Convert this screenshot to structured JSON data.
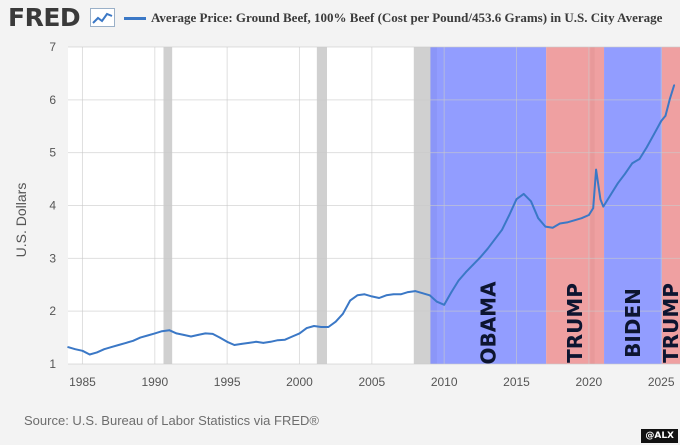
{
  "header": {
    "logo_text": "FRED",
    "legend_text": "Average Price: Ground Beef, 100% Beef (Cost per Pound/453.6 Grams) in U.S. City Average"
  },
  "footer": {
    "source": "Source: U.S. Bureau of Labor Statistics via FRED®",
    "watermark": "@ALX"
  },
  "colors": {
    "line": "#3b78c6",
    "democrat": "#7f8cff",
    "republican": "#ec8f90",
    "recession": "#d0d0d0"
  },
  "chart_data": {
    "type": "line",
    "title": "Average Price: Ground Beef, 100% Beef (Cost per Pound/453.6 Grams) in U.S. City Average",
    "ylabel": "U.S. Dollars",
    "xlabel": "",
    "xlim": [
      1984,
      2026.3
    ],
    "ylim": [
      1,
      7
    ],
    "x_ticks": [
      1985,
      1990,
      1995,
      2000,
      2005,
      2010,
      2015,
      2020,
      2025
    ],
    "y_ticks": [
      1,
      2,
      3,
      4,
      5,
      6,
      7
    ],
    "grid": true,
    "legend": "top",
    "recessions": [
      [
        1990.6,
        1991.2
      ],
      [
        2001.2,
        2001.9
      ],
      [
        2007.9,
        2009.5
      ],
      [
        2020.1,
        2020.4
      ]
    ],
    "eras": [
      {
        "label": "OBAMA",
        "start": 2009.05,
        "end": 2017.05,
        "party": "democrat"
      },
      {
        "label": "TRUMP",
        "start": 2017.05,
        "end": 2021.05,
        "party": "republican"
      },
      {
        "label": "BIDEN",
        "start": 2021.05,
        "end": 2025.05,
        "party": "democrat"
      },
      {
        "label": "TRUMP",
        "start": 2025.05,
        "end": 2026.3,
        "party": "republican"
      }
    ],
    "series": [
      {
        "x": [
          1984.0,
          1984.5,
          1985.0,
          1985.5,
          1986.0,
          1986.5,
          1987.0,
          1987.5,
          1988.0,
          1988.5,
          1989.0,
          1989.5,
          1990.0,
          1990.5,
          1991.0,
          1991.5,
          1992.0,
          1992.5,
          1993.0,
          1993.5,
          1994.0,
          1994.5,
          1995.0,
          1995.5,
          1996.0,
          1996.5,
          1997.0,
          1997.5,
          1998.0,
          1998.5,
          1999.0,
          1999.5,
          2000.0,
          2000.5,
          2001.0,
          2001.5,
          2002.0,
          2002.5,
          2003.0,
          2003.5,
          2004.0,
          2004.5,
          2005.0,
          2005.5,
          2006.0,
          2006.5,
          2007.0,
          2007.5,
          2008.0,
          2008.5,
          2009.0,
          2009.5,
          2010.0,
          2010.5,
          2011.0,
          2011.5,
          2012.0,
          2012.5,
          2013.0,
          2013.5,
          2014.0,
          2014.5,
          2015.0,
          2015.5,
          2016.0,
          2016.5,
          2017.0,
          2017.5,
          2018.0,
          2018.5,
          2019.0,
          2019.5,
          2020.0,
          2020.3,
          2020.5,
          2020.8,
          2021.0,
          2021.5,
          2022.0,
          2022.5,
          2023.0,
          2023.5,
          2024.0,
          2024.5,
          2025.0,
          2025.3,
          2025.6,
          2025.9
        ],
        "y": [
          1.32,
          1.28,
          1.25,
          1.18,
          1.22,
          1.28,
          1.32,
          1.36,
          1.4,
          1.44,
          1.5,
          1.54,
          1.58,
          1.62,
          1.64,
          1.58,
          1.55,
          1.52,
          1.55,
          1.58,
          1.57,
          1.5,
          1.42,
          1.36,
          1.38,
          1.4,
          1.42,
          1.4,
          1.42,
          1.45,
          1.46,
          1.52,
          1.58,
          1.68,
          1.72,
          1.7,
          1.7,
          1.8,
          1.95,
          2.2,
          2.3,
          2.32,
          2.28,
          2.25,
          2.3,
          2.32,
          2.32,
          2.36,
          2.38,
          2.34,
          2.3,
          2.18,
          2.12,
          2.36,
          2.58,
          2.74,
          2.88,
          3.02,
          3.18,
          3.36,
          3.54,
          3.82,
          4.12,
          4.22,
          4.08,
          3.76,
          3.6,
          3.58,
          3.66,
          3.68,
          3.72,
          3.76,
          3.82,
          3.95,
          4.68,
          4.12,
          3.98,
          4.2,
          4.42,
          4.6,
          4.8,
          4.88,
          5.1,
          5.35,
          5.6,
          5.7,
          6.02,
          6.28
        ]
      }
    ]
  }
}
